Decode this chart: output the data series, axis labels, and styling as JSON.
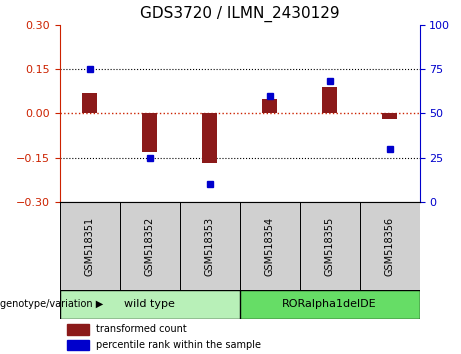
{
  "title": "GDS3720 / ILMN_2430129",
  "samples": [
    "GSM518351",
    "GSM518352",
    "GSM518353",
    "GSM518354",
    "GSM518355",
    "GSM518356"
  ],
  "red_bars": [
    0.07,
    -0.13,
    -0.17,
    0.05,
    0.09,
    -0.02
  ],
  "blue_right": [
    75,
    25,
    10,
    60,
    68,
    30
  ],
  "ylim_left": [
    -0.3,
    0.3
  ],
  "ylim_right": [
    0,
    100
  ],
  "yticks_left": [
    -0.3,
    -0.15,
    0,
    0.15,
    0.3
  ],
  "yticks_right": [
    0,
    25,
    50,
    75,
    100
  ],
  "left_color": "#cc2200",
  "right_color": "#0000cc",
  "bar_color": "#8B1A1A",
  "dot_color": "#0000cc",
  "hline_color": "#cc2200",
  "legend_red_label": "transformed count",
  "legend_blue_label": "percentile rank within the sample",
  "genotype_label": "genotype/variation",
  "group1_name": "wild type",
  "group2_name": "RORalpha1delDE",
  "group1_color": "#b8f0b8",
  "group2_color": "#66DD66",
  "label_bg_color": "#d0d0d0",
  "bar_width": 0.25
}
